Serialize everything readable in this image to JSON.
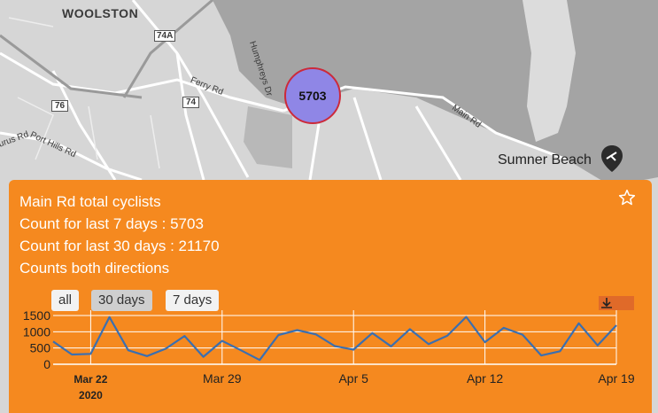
{
  "map": {
    "suburb_label": "WOOLSTON",
    "roads": {
      "ferry_rd": "Ferry Rd",
      "humphreys_dr": "Humphreys Dr",
      "main_rd": "Main Rd",
      "port_hills_rd": "Port Hills Rd",
      "taurus_rd": "urus Rd",
      "shield_74a": "74A",
      "shield_74": "74",
      "shield_76": "76"
    },
    "poi_label": "Sumner Beach",
    "cluster_count": "5703"
  },
  "popup": {
    "title": "Main Rd total cyclists",
    "count_7": "Count for last 7 days : 5703",
    "count_30": "Count for last 30 days : 21170",
    "directions": "Counts both directions",
    "favorite_icon": "star-outline-icon",
    "range_buttons": {
      "all": "all",
      "days30": "30 days",
      "days7": "7 days"
    },
    "download_icon": "download-icon",
    "colors": {
      "panel": "#f5891f",
      "line": "#3b6fb0",
      "grid": "#ffffff",
      "cluster_fill": "#8f86e6",
      "cluster_border": "#cc2a3a"
    }
  },
  "chart_data": {
    "type": "line",
    "x_ticks": [
      "Mar 22",
      "Mar 29",
      "Apr 5",
      "Apr 12",
      "Apr 19"
    ],
    "x_tick_year": "2020",
    "y_ticks": [
      "1500",
      "1000",
      "500",
      "0"
    ],
    "ylim": [
      0,
      1500
    ],
    "x_start": "2020-03-20",
    "series": [
      {
        "values": [
          700,
          300,
          320,
          1450,
          430,
          250,
          480,
          870,
          230,
          720,
          430,
          130,
          900,
          1050,
          920,
          560,
          450,
          960,
          550,
          1080,
          620,
          880,
          1460,
          680,
          1120,
          910,
          270,
          400,
          1260,
          580,
          1200
        ]
      }
    ]
  }
}
